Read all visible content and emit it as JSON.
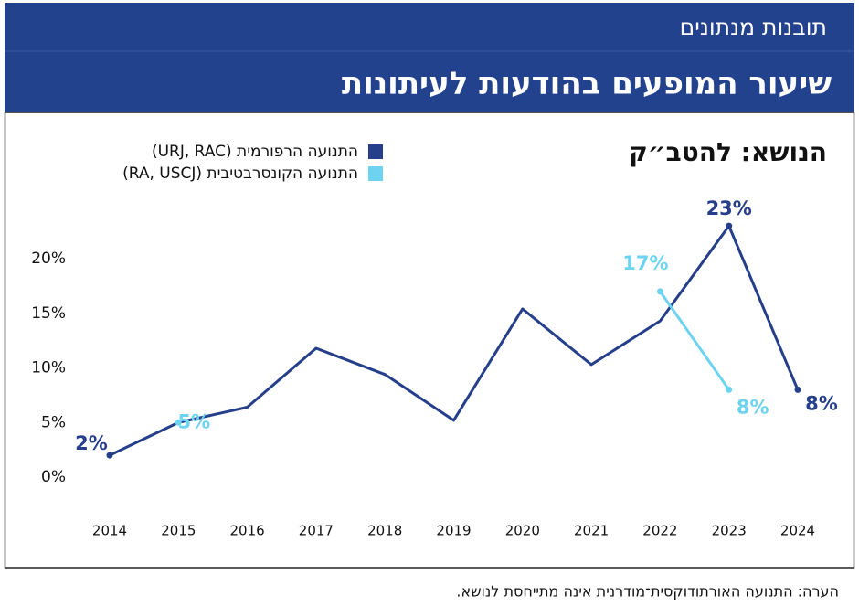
{
  "header": {
    "subtitle": "תובנות מנתונים",
    "title": "שיעור המופעים בהודעות לעיתונות"
  },
  "chart_data": {
    "type": "line",
    "title": "הנושא: להטב״ק",
    "categories": [
      "2014",
      "2015",
      "2016",
      "2017",
      "2018",
      "2019",
      "2020",
      "2021",
      "2022",
      "2023",
      "2024"
    ],
    "series": [
      {
        "name": "התנועה הרפורמית (URJ, RAC)",
        "color": "#253f8a",
        "values": [
          2,
          5,
          6.4,
          11.8,
          9.4,
          5.2,
          15.4,
          10.3,
          14.3,
          23,
          8
        ],
        "value_labels": [
          "2%",
          null,
          null,
          null,
          null,
          null,
          null,
          null,
          null,
          "23%",
          "8%"
        ]
      },
      {
        "name": "התנועה הקונסרבטיבית (RA, USCJ)",
        "color": "#6dd3f0",
        "values": [
          null,
          5,
          null,
          null,
          null,
          null,
          null,
          null,
          17,
          8,
          null
        ],
        "value_labels": [
          null,
          "5%",
          null,
          null,
          null,
          null,
          null,
          null,
          "17%",
          "8%",
          null
        ]
      }
    ],
    "ylim": [
      0,
      25
    ],
    "yticks": [
      {
        "value": 0,
        "label": "0%"
      },
      {
        "value": 5,
        "label": "5%"
      },
      {
        "value": 10,
        "label": "10%"
      },
      {
        "value": 15,
        "label": "15%"
      },
      {
        "value": 20,
        "label": "20%"
      }
    ],
    "grid": false
  },
  "note": "הערה: התנועה האורתודוקסית־מודרנית אינה מתייחסת לנושא."
}
